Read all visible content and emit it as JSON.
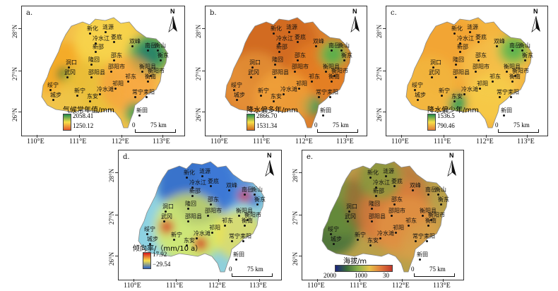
{
  "lat_labels": [
    "28°N",
    "27°N",
    "26°N"
  ],
  "lon_labels": [
    "110°E",
    "111°E",
    "112°E",
    "113°E"
  ],
  "north_label": "N",
  "scale_zero": "0",
  "scale_text": "75 km",
  "cities": [
    "新化",
    "涟源",
    "冷水江",
    "娄底",
    "双峰",
    "新邵",
    "南岳",
    "衡山",
    "衡东",
    "邵东",
    "洞口",
    "隆回",
    "邵阳市",
    "衡阳县",
    "衡阳市",
    "武冈",
    "邵阳县",
    "祁东",
    "衡南",
    "绥宁",
    "新宁",
    "冷水滩",
    "耒阳",
    "城步",
    "东安",
    "祁阳",
    "常宁",
    "新田"
  ],
  "panels": [
    {
      "letter": "a.",
      "legend_title": "气候常年值/mm",
      "legend_max": "2058.41",
      "legend_min": "1250.12",
      "colors": {
        "high": "#1f8a4c",
        "low": "#e4572e"
      }
    },
    {
      "letter": "b.",
      "legend_title": "降水偏多年/mm",
      "legend_max": "2866.70",
      "legend_min": "1531.34",
      "colors": {
        "high": "#1f8a4c",
        "low": "#d2691e"
      }
    },
    {
      "letter": "c.",
      "legend_title": "降水偏少年/mm",
      "legend_max": "1536.5",
      "legend_min": "790.46",
      "colors": {
        "high": "#1f8a4c",
        "low": "#e07b39"
      }
    },
    {
      "letter": "d.",
      "legend_title": "倾向率/（mm/10 a）",
      "legend_max": "17.92",
      "legend_min": "−29.54",
      "colors": {
        "high": "#d7191c",
        "low": "#2c63c8"
      }
    },
    {
      "letter": "e.",
      "legend_title": "海拔/m",
      "legend_max": "2000",
      "legend_mid": "1000",
      "legend_min": "30",
      "colors": {
        "high": "#1a237e",
        "low": "#c0392b"
      }
    }
  ]
}
